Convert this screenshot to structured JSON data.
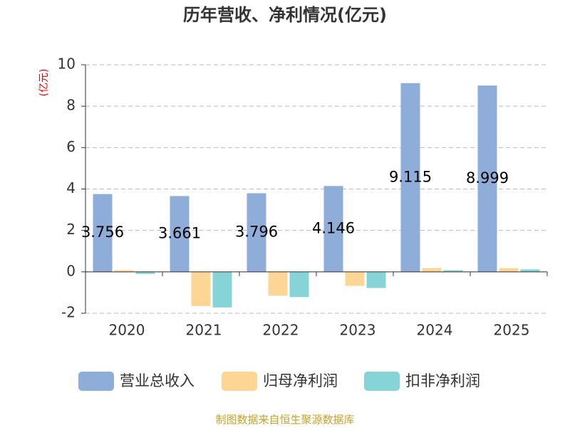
{
  "chart_data": {
    "type": "bar",
    "title": "历年营收、净利情况(亿元)",
    "y_label": "(亿元)",
    "categories": [
      "2020",
      "2021",
      "2022",
      "2023",
      "2024",
      "2025"
    ],
    "series": [
      {
        "name": "营业总收入",
        "color": "#8eadd9",
        "values": [
          3.756,
          3.661,
          3.796,
          4.146,
          9.115,
          8.999
        ],
        "show_labels": true
      },
      {
        "name": "归母净利润",
        "color": "#fdd594",
        "values": [
          0.08,
          -1.65,
          -1.15,
          -0.68,
          0.18,
          0.18
        ]
      },
      {
        "name": "扣非净利润",
        "color": "#86d4d7",
        "values": [
          -0.1,
          -1.72,
          -1.22,
          -0.78,
          0.08,
          0.12
        ]
      }
    ],
    "ylim": [
      -2,
      10
    ],
    "yticks": [
      -2,
      0,
      2,
      4,
      6,
      8,
      10
    ],
    "grid": true,
    "source": "制图数据来自恒生聚源数据库"
  }
}
